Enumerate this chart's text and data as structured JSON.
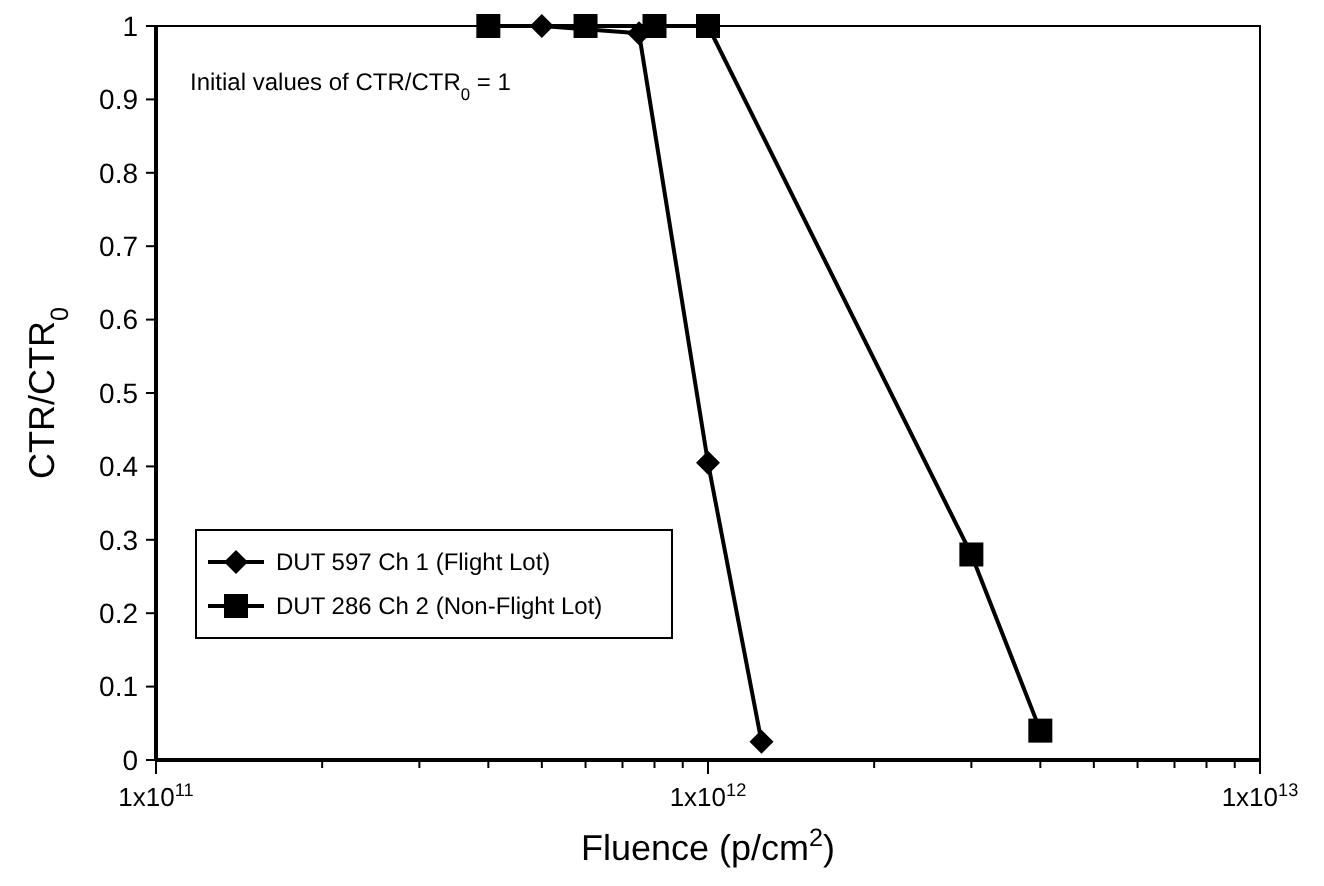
{
  "chart_data": {
    "type": "line",
    "xlabel": "Fluence (p/cm$^{2}$)",
    "ylabel": "CTR/CTR$_{0}$",
    "annotations": [
      "Initial values of CTR/CTR$_{0}$ = 1"
    ],
    "log": "x",
    "xlim": [
      100000000000.0,
      10000000000000.0
    ],
    "xticks": [
      {
        "value": 100000000000.0,
        "label": "1x10$^{11}$"
      },
      {
        "value": 1000000000000.0,
        "label": "1x10$^{12}$"
      },
      {
        "value": 10000000000000.0,
        "label": "1x10$^{13}$"
      }
    ],
    "ylim": [
      0,
      1
    ],
    "yticks": [
      0,
      0.1,
      0.2,
      0.3,
      0.4,
      0.5,
      0.6,
      0.7,
      0.8,
      0.9,
      1
    ],
    "grid": false,
    "legend": "bottom left",
    "line_style": "solid",
    "series": [
      {
        "name": "DUT 597 Ch 1 (Flight Lot)",
        "color": "#000000",
        "marker": "diamond",
        "x": [
          500000000000.0,
          750000000000.0,
          1000000000000.0,
          1250000000000.0
        ],
        "values": [
          1,
          0.99,
          0.405,
          0.025
        ]
      },
      {
        "name": "DUT 286 Ch 2 (Non-Flight Lot)",
        "color": "#000000",
        "marker": "square",
        "x": [
          400000000000.0,
          600000000000.0,
          800000000000.0,
          1000000000000.0,
          3000000000000.0,
          4000000000000.0
        ],
        "values": [
          1,
          1,
          1,
          1,
          0.28,
          0.04
        ]
      }
    ]
  }
}
